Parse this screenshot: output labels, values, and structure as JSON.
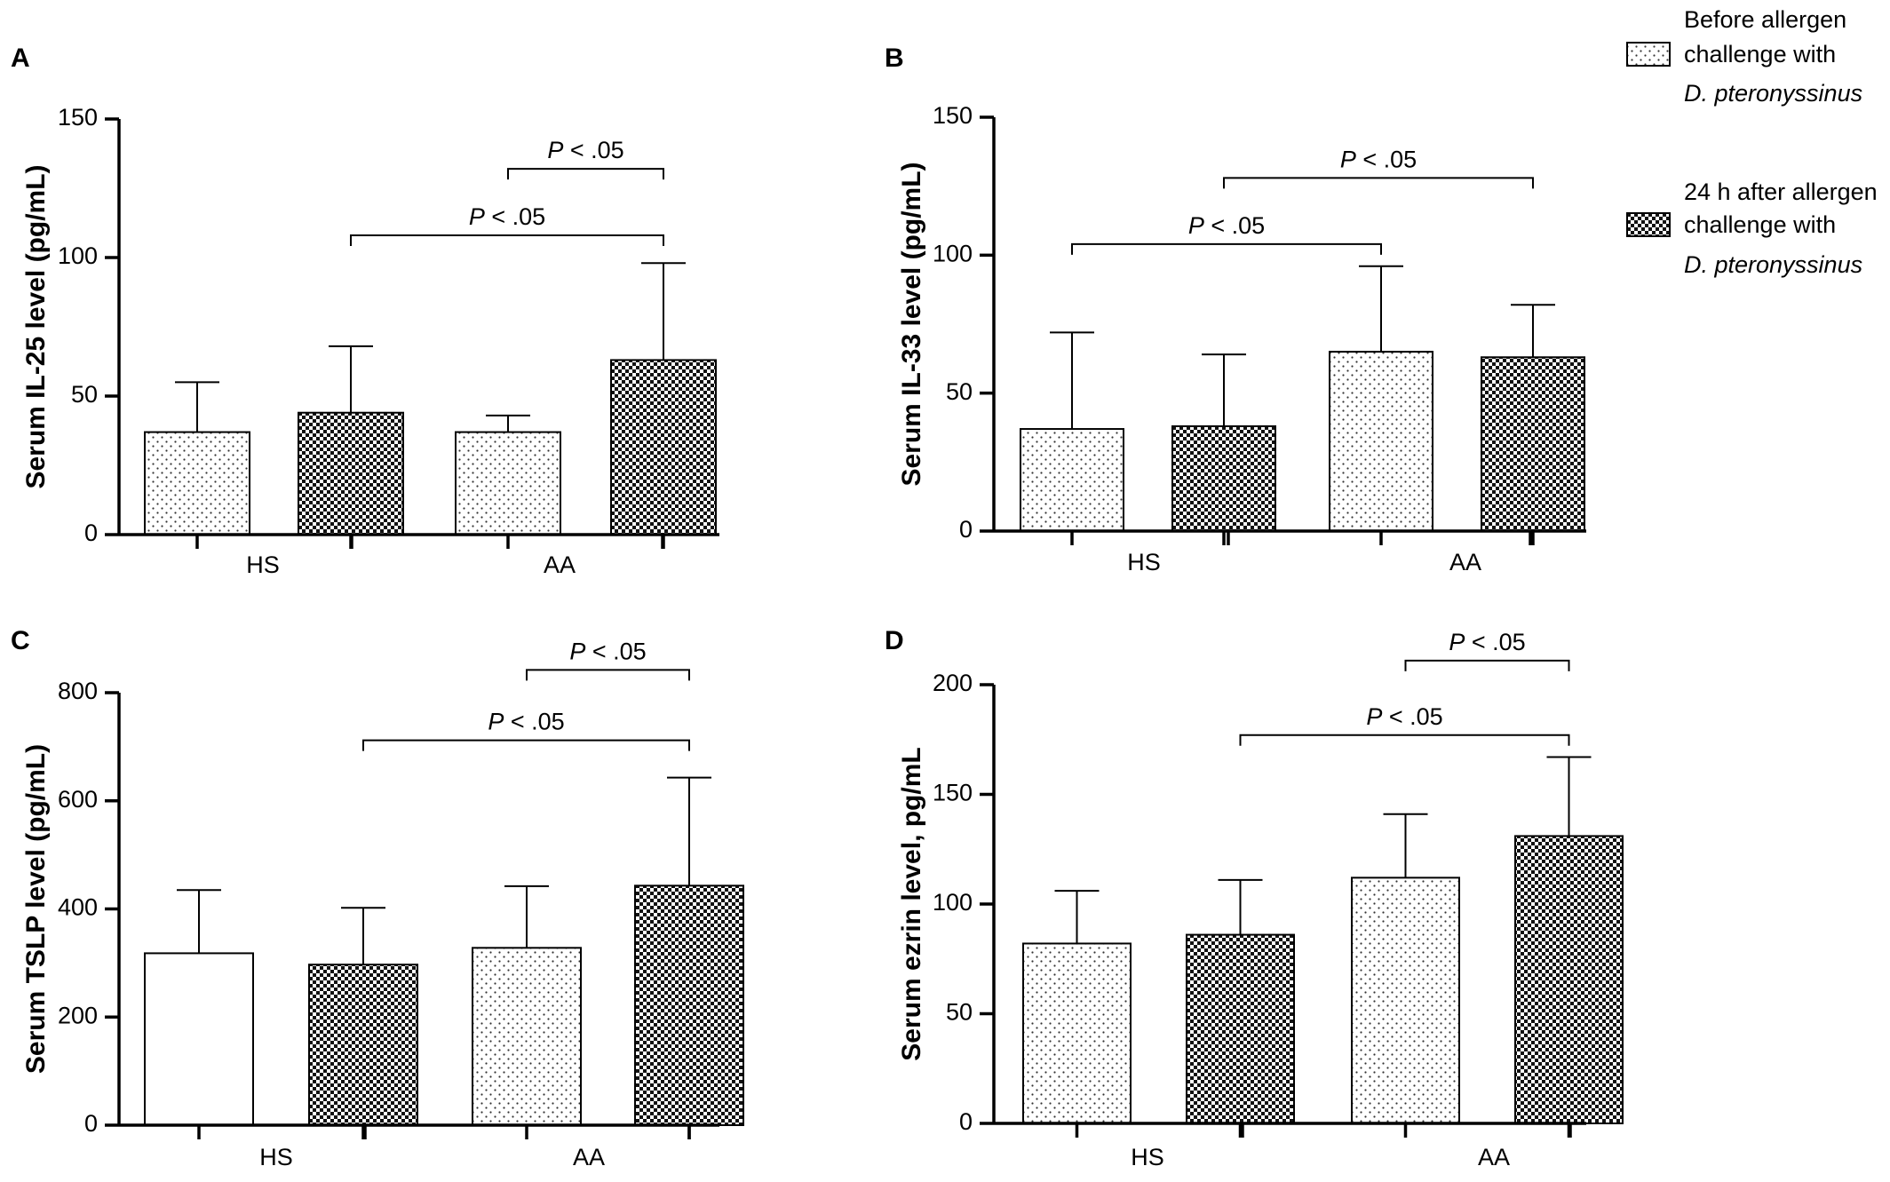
{
  "legend": {
    "entries": [
      {
        "key": "before",
        "pattern": "dots",
        "lines": [
          "Before allergen",
          "challenge with",
          "D. pteronyssinus"
        ]
      },
      {
        "key": "after",
        "pattern": "checker",
        "lines": [
          "24 h after allergen",
          "challenge with",
          "D. pteronyssinus"
        ]
      }
    ]
  },
  "chart_data": [
    {
      "panel": "A",
      "type": "bar",
      "ylabel": "Serum IL-25 level (pg/mL)",
      "ylim": [
        0,
        150
      ],
      "yticks": [
        0,
        50,
        100,
        150
      ],
      "groups": [
        "HS",
        "AA"
      ],
      "bars": [
        {
          "group": "HS",
          "pattern": "dots",
          "value": 37,
          "error": 55
        },
        {
          "group": "HS",
          "pattern": "checker",
          "value": 44,
          "error": 68
        },
        {
          "group": "AA",
          "pattern": "dots",
          "value": 37,
          "error": 43
        },
        {
          "group": "AA",
          "pattern": "checker",
          "value": 63,
          "error": 98
        }
      ],
      "significance": [
        {
          "from": 2,
          "to": 3,
          "y": 132,
          "label_p": "P",
          "label_rest": " < .05"
        },
        {
          "from": 1,
          "to": 3,
          "y": 108,
          "label_p": "P",
          "label_rest": " < .05"
        }
      ]
    },
    {
      "panel": "B",
      "type": "bar",
      "ylabel": "Serum IL-33 level (pg/mL)",
      "ylim": [
        0,
        150
      ],
      "yticks": [
        0,
        50,
        100,
        150
      ],
      "groups": [
        "HS",
        "AA"
      ],
      "bars": [
        {
          "group": "HS",
          "pattern": "dots",
          "value": 37,
          "error": 72
        },
        {
          "group": "HS",
          "pattern": "checker",
          "value": 38,
          "error": 64
        },
        {
          "group": "AA",
          "pattern": "dots",
          "value": 65,
          "error": 96
        },
        {
          "group": "AA",
          "pattern": "checker",
          "value": 63,
          "error": 82
        }
      ],
      "significance": [
        {
          "from": 1,
          "to": 3,
          "y": 128,
          "label_p": "P",
          "label_rest": " < .05"
        },
        {
          "from": 0,
          "to": 2,
          "y": 104,
          "label_p": "P",
          "label_rest": " < .05"
        }
      ]
    },
    {
      "panel": "C",
      "type": "bar",
      "ylabel": "Serum TSLP level (pg/mL)",
      "ylim": [
        0,
        800
      ],
      "yticks": [
        0,
        200,
        400,
        600,
        800
      ],
      "groups": [
        "HS",
        "AA"
      ],
      "bars": [
        {
          "group": "HS",
          "pattern": "none",
          "value": 318,
          "error": 435
        },
        {
          "group": "HS",
          "pattern": "checker",
          "value": 297,
          "error": 402
        },
        {
          "group": "AA",
          "pattern": "dots",
          "value": 328,
          "error": 442
        },
        {
          "group": "AA",
          "pattern": "checker",
          "value": 443,
          "error": 643
        }
      ],
      "significance": [
        {
          "from": 2,
          "to": 3,
          "y": 842,
          "label_p": "P",
          "label_rest": " < .05"
        },
        {
          "from": 1,
          "to": 3,
          "y": 712,
          "label_p": "P",
          "label_rest": " < .05"
        }
      ]
    },
    {
      "panel": "D",
      "type": "bar",
      "ylabel": "Serum ezrin level, pg/mL",
      "ylim": [
        0,
        200
      ],
      "yticks": [
        0,
        50,
        100,
        150,
        200
      ],
      "groups": [
        "HS",
        "AA"
      ],
      "bars": [
        {
          "group": "HS",
          "pattern": "dots",
          "value": 82,
          "error": 106
        },
        {
          "group": "HS",
          "pattern": "checker",
          "value": 86,
          "error": 111
        },
        {
          "group": "AA",
          "pattern": "dots",
          "value": 112,
          "error": 141
        },
        {
          "group": "AA",
          "pattern": "checker",
          "value": 131,
          "error": 167
        }
      ],
      "significance": [
        {
          "from": 2,
          "to": 3,
          "y": 211,
          "label_p": "P",
          "label_rest": " < .05"
        },
        {
          "from": 1,
          "to": 3,
          "y": 177,
          "label_p": "P",
          "label_rest": " < .05"
        }
      ]
    }
  ]
}
